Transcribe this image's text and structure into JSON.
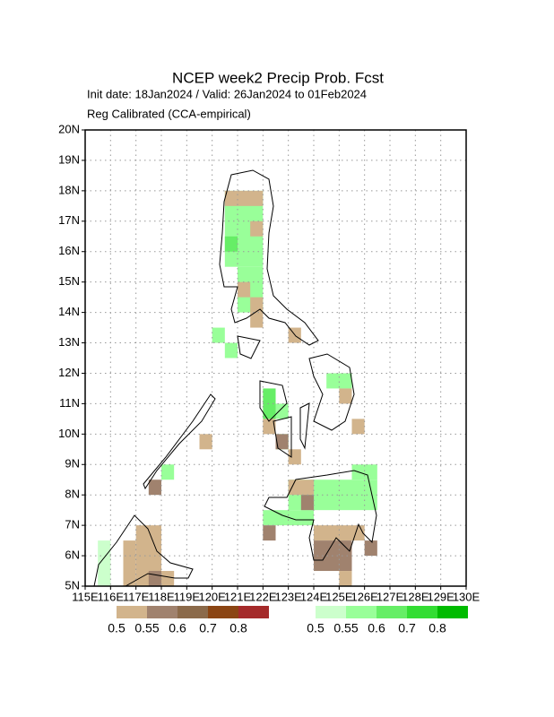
{
  "chart_data": {
    "type": "gridmap",
    "title": "NCEP week2 Precip Prob. Fcst",
    "subtitle": "Init date: 18Jan2024 / Valid: 26Jan2024 to 01Feb2024",
    "note": "Reg Calibrated (CCA-empirical)",
    "xlim": [
      115,
      130
    ],
    "ylim": [
      5,
      20
    ],
    "xticks": [
      {
        "value": 115,
        "label": "115E"
      },
      {
        "value": 116,
        "label": "116E"
      },
      {
        "value": 117,
        "label": "117E"
      },
      {
        "value": 118,
        "label": "118E"
      },
      {
        "value": 119,
        "label": "119E"
      },
      {
        "value": 120,
        "label": "120E"
      },
      {
        "value": 121,
        "label": "121E"
      },
      {
        "value": 122,
        "label": "122E"
      },
      {
        "value": 123,
        "label": "123E"
      },
      {
        "value": 124,
        "label": "124E"
      },
      {
        "value": 125,
        "label": "125E"
      },
      {
        "value": 126,
        "label": "126E"
      },
      {
        "value": 127,
        "label": "127E"
      },
      {
        "value": 128,
        "label": "128E"
      },
      {
        "value": 129,
        "label": "129E"
      },
      {
        "value": 130,
        "label": "130E"
      }
    ],
    "yticks": [
      {
        "value": 5,
        "label": "5N"
      },
      {
        "value": 6,
        "label": "6N"
      },
      {
        "value": 7,
        "label": "7N"
      },
      {
        "value": 8,
        "label": "8N"
      },
      {
        "value": 9,
        "label": "9N"
      },
      {
        "value": 10,
        "label": "10N"
      },
      {
        "value": 11,
        "label": "11N"
      },
      {
        "value": 12,
        "label": "12N"
      },
      {
        "value": 13,
        "label": "13N"
      },
      {
        "value": 14,
        "label": "14N"
      },
      {
        "value": 15,
        "label": "15N"
      },
      {
        "value": 16,
        "label": "16N"
      },
      {
        "value": 17,
        "label": "17N"
      },
      {
        "value": 18,
        "label": "18N"
      },
      {
        "value": 19,
        "label": "19N"
      },
      {
        "value": 20,
        "label": "20N"
      }
    ],
    "grid": true,
    "colorbars": [
      {
        "category": "below",
        "colors": [
          "#d2b48c",
          "#a0826e",
          "#8b6a4a",
          "#8b4513",
          "#a52a2a"
        ],
        "labels": [
          0.5,
          0.55,
          0.6,
          0.7,
          0.8
        ]
      },
      {
        "category": "above",
        "colors": [
          "#ccffcc",
          "#99ff99",
          "#66ee66",
          "#33dd33",
          "#00bb00"
        ],
        "labels": [
          0.5,
          0.55,
          0.6,
          0.7,
          0.8
        ]
      }
    ],
    "cells": [
      {
        "bar": 1,
        "level": 1,
        "lon": [
          120.5,
          122.0
        ],
        "lat": [
          15.5,
          18.0
        ]
      },
      {
        "bar": 1,
        "level": 2,
        "lon": [
          120.5,
          121.0
        ],
        "lat": [
          16.0,
          16.5
        ]
      },
      {
        "bar": 1,
        "level": 1,
        "lon": [
          121.0,
          122.0
        ],
        "lat": [
          14.0,
          15.5
        ]
      },
      {
        "bar": 1,
        "level": 1,
        "lon": [
          120.0,
          120.5
        ],
        "lat": [
          13.0,
          13.5
        ]
      },
      {
        "bar": 1,
        "level": 1,
        "lon": [
          120.5,
          121.0
        ],
        "lat": [
          12.5,
          13.0
        ]
      },
      {
        "bar": 1,
        "level": 2,
        "lon": [
          122.0,
          122.5
        ],
        "lat": [
          10.5,
          11.5
        ]
      },
      {
        "bar": 1,
        "level": 1,
        "lon": [
          122.5,
          123.0
        ],
        "lat": [
          10.5,
          11.0
        ]
      },
      {
        "bar": 1,
        "level": 1,
        "lon": [
          124.5,
          125.5
        ],
        "lat": [
          11.5,
          12.0
        ]
      },
      {
        "bar": 1,
        "level": 1,
        "lon": [
          123.0,
          126.5
        ],
        "lat": [
          7.5,
          8.5
        ]
      },
      {
        "bar": 1,
        "level": 1,
        "lon": [
          125.5,
          126.5
        ],
        "lat": [
          8.5,
          9.0
        ]
      },
      {
        "bar": 1,
        "level": 1,
        "lon": [
          122.0,
          124.0
        ],
        "lat": [
          7.0,
          7.5
        ]
      },
      {
        "bar": 1,
        "level": 0,
        "lon": [
          115.5,
          116.0
        ],
        "lat": [
          5.0,
          6.5
        ]
      },
      {
        "bar": 1,
        "level": 1,
        "lon": [
          118.0,
          118.5
        ],
        "lat": [
          8.5,
          9.0
        ]
      },
      {
        "bar": 0,
        "level": 0,
        "lon": [
          120.5,
          122.0
        ],
        "lat": [
          17.5,
          18.0
        ]
      },
      {
        "bar": 0,
        "level": 0,
        "lon": [
          121.5,
          122.0
        ],
        "lat": [
          16.5,
          17.0
        ]
      },
      {
        "bar": 0,
        "level": 0,
        "lon": [
          121.5,
          122.0
        ],
        "lat": [
          14.0,
          14.5
        ]
      },
      {
        "bar": 0,
        "level": 0,
        "lon": [
          121.0,
          121.5
        ],
        "lat": [
          14.5,
          15.0
        ]
      },
      {
        "bar": 0,
        "level": 0,
        "lon": [
          121.5,
          122.0
        ],
        "lat": [
          13.5,
          14.0
        ]
      },
      {
        "bar": 0,
        "level": 0,
        "lon": [
          123.0,
          123.5
        ],
        "lat": [
          13.0,
          13.5
        ]
      },
      {
        "bar": 0,
        "level": 0,
        "lon": [
          125.0,
          125.5
        ],
        "lat": [
          11.0,
          11.5
        ]
      },
      {
        "bar": 0,
        "level": 0,
        "lon": [
          125.5,
          126.0
        ],
        "lat": [
          10.0,
          10.5
        ]
      },
      {
        "bar": 0,
        "level": 0,
        "lon": [
          122.0,
          122.5
        ],
        "lat": [
          10.0,
          10.5
        ]
      },
      {
        "bar": 1,
        "level": 1,
        "lon": [
          122.5,
          123.0
        ],
        "lat": [
          9.5,
          10.0
        ]
      },
      {
        "bar": 0,
        "level": 1,
        "lon": [
          122.5,
          123.0
        ],
        "lat": [
          9.5,
          10.0
        ]
      },
      {
        "bar": 0,
        "level": 0,
        "lon": [
          123.0,
          123.5
        ],
        "lat": [
          9.0,
          9.5
        ]
      },
      {
        "bar": 0,
        "level": 0,
        "lon": [
          119.5,
          120.0
        ],
        "lat": [
          9.5,
          10.0
        ]
      },
      {
        "bar": 0,
        "level": 1,
        "lon": [
          117.5,
          118.0
        ],
        "lat": [
          8.0,
          8.5
        ]
      },
      {
        "bar": 0,
        "level": 0,
        "lon": [
          117.0,
          118.0
        ],
        "lat": [
          5.0,
          7.0
        ]
      },
      {
        "bar": 0,
        "level": 0,
        "lon": [
          116.5,
          117.0
        ],
        "lat": [
          5.0,
          6.5
        ]
      },
      {
        "bar": 0,
        "level": 1,
        "lon": [
          117.5,
          118.0
        ],
        "lat": [
          5.0,
          5.5
        ]
      },
      {
        "bar": 0,
        "level": 0,
        "lon": [
          118.0,
          118.5
        ],
        "lat": [
          5.0,
          5.5
        ]
      },
      {
        "bar": 0,
        "level": 0,
        "lon": [
          123.0,
          124.0
        ],
        "lat": [
          8.0,
          8.5
        ]
      },
      {
        "bar": 0,
        "level": 1,
        "lon": [
          123.5,
          124.0
        ],
        "lat": [
          7.5,
          8.0
        ]
      },
      {
        "bar": 0,
        "level": 1,
        "lon": [
          122.0,
          122.5
        ],
        "lat": [
          6.5,
          7.0
        ]
      },
      {
        "bar": 0,
        "level": 0,
        "lon": [
          124.0,
          125.5
        ],
        "lat": [
          6.5,
          7.0
        ]
      },
      {
        "bar": 0,
        "level": 1,
        "lon": [
          124.0,
          125.5
        ],
        "lat": [
          5.5,
          6.5
        ]
      },
      {
        "bar": 0,
        "level": 0,
        "lon": [
          125.0,
          125.5
        ],
        "lat": [
          5.0,
          5.5
        ]
      },
      {
        "bar": 0,
        "level": 0,
        "lon": [
          125.5,
          126.0
        ],
        "lat": [
          6.5,
          7.0
        ]
      },
      {
        "bar": 0,
        "level": 1,
        "lon": [
          126.0,
          126.5
        ],
        "lat": [
          6.0,
          6.5
        ]
      }
    ]
  }
}
